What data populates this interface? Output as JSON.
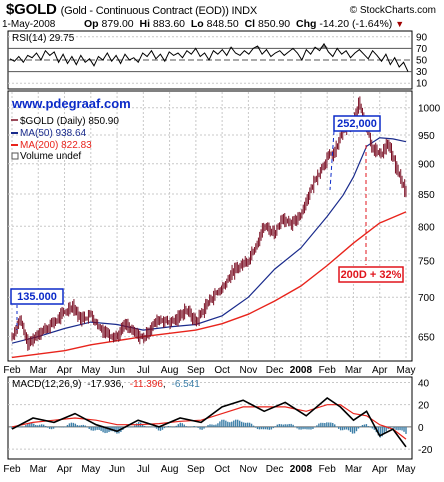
{
  "header": {
    "symbol": "$GOLD",
    "description": "(Gold - Continuous Contract (EOD)) INDX",
    "copyright": "© StockCharts.com",
    "date": "1-May-2008",
    "open_label": "Op",
    "open": "879.00",
    "high_label": "Hi",
    "high": "883.60",
    "low_label": "Lo",
    "low": "848.50",
    "close_label": "Cl",
    "close": "850.90",
    "change_label": "Chg",
    "change": "-14.20 (-1.64%)"
  },
  "colors": {
    "background": "#ffffff",
    "grid": "#c8c8c8",
    "price_bars": "#7a0f24",
    "ma50": "#1a2b8c",
    "ma200": "#e8241c",
    "url": "#0b2ac8",
    "annotation": "#e0141c",
    "histogram": "#3d7fa8",
    "rsi_fill": "#808080",
    "change_arrow": "#a00000"
  },
  "rsi": {
    "label": "RSI(14) 29.75",
    "ticks": [
      "90",
      "70",
      "50",
      "30",
      "10"
    ],
    "tick_values": [
      90,
      70,
      50,
      30,
      10
    ],
    "values": [
      52,
      48,
      56,
      46,
      58,
      54,
      62,
      50,
      66,
      58,
      64,
      46,
      60,
      44,
      56,
      42,
      58,
      46,
      52,
      40,
      56,
      50,
      62,
      48,
      58,
      44,
      60,
      50,
      54,
      46,
      62,
      56,
      66,
      52,
      60,
      48,
      64,
      58,
      62,
      54,
      66,
      60,
      70,
      56,
      62,
      50,
      66,
      60,
      68,
      58,
      72,
      62,
      58,
      66,
      60,
      70,
      74,
      60,
      68,
      56,
      62,
      66,
      58,
      64,
      70,
      62,
      50,
      68,
      60,
      72,
      66,
      78,
      64,
      56,
      70,
      60,
      66,
      54,
      62,
      68,
      60,
      52,
      66,
      58,
      48,
      60,
      42,
      54,
      38,
      46,
      30
    ]
  },
  "main": {
    "url": "www.pdegraaf.com",
    "legend_price": "$GOLD (Daily) 850.90",
    "legend_ma50": "MA(50) 938.64",
    "legend_ma200": "MA(200) 822.83",
    "legend_volume": "Volume undef",
    "callout_start": "135.000",
    "callout_peak": "252,000",
    "callout_gain": "200D + 32%"
  },
  "macd": {
    "label_prefix": "MACD(12,26,9)",
    "value1": "-17.936",
    "value2": "-11.396",
    "value3": "-6.541",
    "ticks": [
      "40",
      "20",
      "0",
      "-20"
    ],
    "tick_values": [
      40,
      20,
      0,
      -20
    ]
  },
  "x_axis": {
    "labels": [
      "Feb",
      "Mar",
      "Apr",
      "May",
      "Jun",
      "Jul",
      "Aug",
      "Sep",
      "Oct",
      "Nov",
      "Dec",
      "2008",
      "Feb",
      "Mar",
      "Apr",
      "May"
    ]
  },
  "chart_data": {
    "type": "line",
    "title": "$GOLD (Gold - Continuous Contract (EOD)) INDX",
    "x_unit": "months since Feb 2007",
    "y_ticks": [
      650,
      700,
      750,
      800,
      850,
      900,
      950,
      1000
    ],
    "ylim": [
      622,
      1030
    ],
    "log_scale": true,
    "grid": true,
    "legend_placement": "top-left",
    "series": [
      {
        "name": "$GOLD (Daily) 850.90",
        "x": [
          0,
          0.3,
          0.6,
          1,
          1.3,
          1.6,
          2,
          2.3,
          2.6,
          3,
          3.3,
          3.6,
          4,
          4.3,
          4.6,
          5,
          5.3,
          5.6,
          6,
          6.3,
          6.6,
          7,
          7.3,
          7.6,
          8,
          8.3,
          8.6,
          9,
          9.3,
          9.6,
          10,
          10.3,
          10.6,
          11,
          11.3,
          11.6,
          12,
          12.3,
          12.6,
          13,
          13.2,
          13.4,
          13.7,
          14,
          14.3,
          14.6,
          15
        ],
        "values": [
          650,
          672,
          640,
          655,
          660,
          668,
          680,
          690,
          672,
          678,
          662,
          655,
          650,
          665,
          655,
          648,
          662,
          672,
          668,
          672,
          685,
          668,
          685,
          700,
          712,
          730,
          740,
          752,
          775,
          800,
          790,
          815,
          800,
          820,
          850,
          880,
          910,
          920,
          960,
          970,
          1010,
          980,
          930,
          915,
          935,
          895,
          852
        ]
      },
      {
        "name": "MA(50) 938.64",
        "x": [
          0,
          1,
          2,
          3,
          4,
          5,
          6,
          7,
          8,
          9,
          10,
          11,
          12,
          12.6,
          13,
          13.5,
          14,
          14.5,
          15
        ],
        "values": [
          642,
          650,
          660,
          668,
          665,
          658,
          662,
          665,
          676,
          700,
          738,
          768,
          815,
          848,
          878,
          930,
          945,
          943,
          938
        ]
      },
      {
        "name": "MA(200) 822.83",
        "x": [
          0,
          1,
          2,
          3,
          4,
          5,
          6,
          7,
          8,
          9,
          10,
          11,
          12,
          13,
          14,
          15
        ],
        "values": [
          625,
          629,
          633,
          640,
          645,
          650,
          654,
          658,
          666,
          678,
          695,
          715,
          743,
          775,
          805,
          822
        ]
      }
    ]
  }
}
